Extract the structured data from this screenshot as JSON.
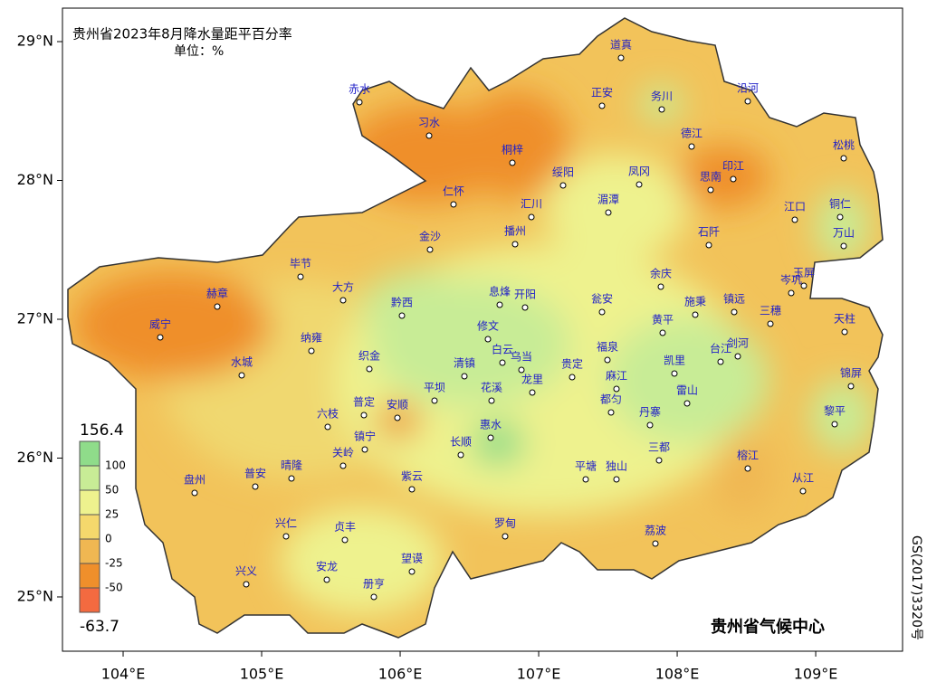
{
  "map_data": {
    "title": "贵州省2023年8月降水量距平百分率",
    "unit": "单位：%",
    "credit": "贵州省气候中心",
    "approval": "GS(2017)3320号",
    "xlim": [
      103.562,
      109.627
    ],
    "ylim": [
      24.609,
      29.241
    ],
    "xticks": [
      {
        "value": 104,
        "label": "104°E"
      },
      {
        "value": 105,
        "label": "105°E"
      },
      {
        "value": 106,
        "label": "106°E"
      },
      {
        "value": 107,
        "label": "107°E"
      },
      {
        "value": 108,
        "label": "108°E"
      },
      {
        "value": 109,
        "label": "109°E"
      }
    ],
    "yticks": [
      {
        "value": 25,
        "label": "25°N"
      },
      {
        "value": 26,
        "label": "26°N"
      },
      {
        "value": 27,
        "label": "27°N"
      },
      {
        "value": 28,
        "label": "28°N"
      },
      {
        "value": 29,
        "label": "29°N"
      }
    ],
    "colorbar": {
      "max": 156.4,
      "min": -63.7,
      "levels": [
        100,
        50,
        25,
        0,
        -25,
        -50
      ],
      "colors": [
        "#8fdc8a",
        "#c8ec96",
        "#eef28e",
        "#f5d86c",
        "#f0b752",
        "#ef8f2b",
        "#f36a40"
      ]
    },
    "stations": [
      "赤水",
      "习水",
      "桐梓",
      "道真",
      "正安",
      "务川",
      "沿河",
      "德江",
      "松桃",
      "绥阳",
      "凤冈",
      "思南",
      "印江",
      "仁怀",
      "汇川",
      "湄潭",
      "江口",
      "铜仁",
      "万山",
      "金沙",
      "播州",
      "石阡",
      "毕节",
      "赫章",
      "大方",
      "黔西",
      "息烽",
      "开阳",
      "瓮安",
      "余庆",
      "施秉",
      "镇远",
      "岑巩",
      "玉屏",
      "三穗",
      "天柱",
      "威宁",
      "纳雍",
      "织金",
      "修文",
      "白云",
      "黄平",
      "福泉",
      "剑河",
      "台江",
      "水城",
      "清镇",
      "乌当",
      "贵定",
      "凯里",
      "锦屏",
      "平坝",
      "花溪",
      "龙里",
      "麻江",
      "都匀",
      "雷山",
      "六枝",
      "普定",
      "安顺",
      "黎平",
      "惠水",
      "丹寨",
      "镇宁",
      "关岭",
      "长顺",
      "三都",
      "榕江",
      "盘州",
      "普安",
      "晴隆",
      "紫云",
      "平塘",
      "独山",
      "从江",
      "兴仁",
      "贞丰",
      "罗甸",
      "荔波",
      "兴义",
      "安龙",
      "望谟",
      "册亨"
    ]
  }
}
